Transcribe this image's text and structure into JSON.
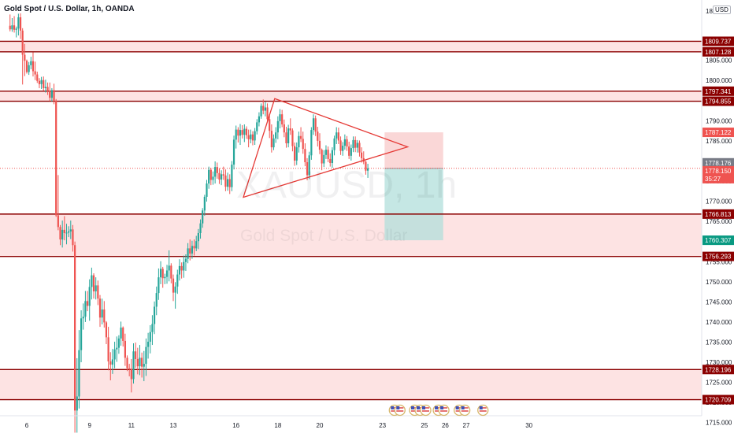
{
  "header": {
    "title": "Gold Spot / U.S. Dollar, 1h, OANDA",
    "currency_label": "USD"
  },
  "watermark": {
    "symbol": "XAUUSD, 1h",
    "name": "Gold Spot / U.S. Dollar"
  },
  "colors": {
    "up": "#26a69a",
    "down": "#ef5350",
    "level_line": "#8b0000",
    "zone_fill": "#fde3e3",
    "triangle": "#e53935",
    "stop_fill": "#f8c9c9",
    "target_fill": "#b2dfdb",
    "price_line": "#ef5350",
    "current_price_label": "#787b86",
    "target_label": "#089981"
  },
  "countdown": "35:27",
  "calendar_events": {
    "icon": "us-flag-event-icon",
    "groups": [
      {
        "x": 23.7,
        "count": 2
      },
      {
        "x": 24.8,
        "count": 3
      },
      {
        "x": 25.8,
        "count": 2
      },
      {
        "x": 26.8,
        "count": 2
      },
      {
        "x": 27.8,
        "count": 1
      }
    ]
  },
  "chart_data": {
    "type": "candlestick",
    "title": "Gold Spot / U.S. Dollar, 1h, OANDA",
    "ylim": [
      1712.5,
      1820
    ],
    "y_ticks": [
      1715,
      1720,
      1725,
      1730,
      1735,
      1740,
      1745,
      1750,
      1755,
      1760,
      1765,
      1770,
      1775,
      1780,
      1785,
      1790,
      1795,
      1800,
      1805,
      1810
    ],
    "top_tick_label": "18",
    "x_ticks": [
      {
        "x": 6,
        "label": "6"
      },
      {
        "x": 9,
        "label": "9"
      },
      {
        "x": 11,
        "label": "11"
      },
      {
        "x": 13,
        "label": "13"
      },
      {
        "x": 16,
        "label": "16"
      },
      {
        "x": 18,
        "label": "18"
      },
      {
        "x": 20,
        "label": "20"
      },
      {
        "x": 23,
        "label": "23"
      },
      {
        "x": 25,
        "label": "25"
      },
      {
        "x": 26,
        "label": "26"
      },
      {
        "x": 27,
        "label": "27"
      },
      {
        "x": 30,
        "label": "30"
      }
    ],
    "price_levels": [
      {
        "label": "1809.737",
        "value": 1809.737
      },
      {
        "label": "1807.128",
        "value": 1807.128
      },
      {
        "label": "1797.341",
        "value": 1797.341
      },
      {
        "label": "1794.855",
        "value": 1794.855
      },
      {
        "label": "1766.813",
        "value": 1766.813
      },
      {
        "label": "1756.293",
        "value": 1756.293
      },
      {
        "label": "1728.196",
        "value": 1728.196
      },
      {
        "label": "1720.709",
        "value": 1720.709
      }
    ],
    "zones": [
      {
        "from": 1807.128,
        "to": 1809.737
      },
      {
        "from": 1794.855,
        "to": 1797.341
      },
      {
        "from": 1756.293,
        "to": 1766.813
      },
      {
        "from": 1720.709,
        "to": 1728.196
      }
    ],
    "current_price": {
      "value": 1778.176,
      "label": "1778.176"
    },
    "position": {
      "entry": 1778.15,
      "entry_label": "1778.150",
      "stop": 1787.122,
      "stop_label": "1787.122",
      "target": 1760.307,
      "target_label": "1760.307",
      "start": 23.1,
      "end": 25.9
    },
    "triangle": [
      {
        "x": 16.35,
        "y": 1771.0
      },
      {
        "x": 17.85,
        "y": 1795.5
      },
      {
        "x": 24.2,
        "y": 1783.5
      }
    ],
    "candles": [
      [
        5.2,
        1813.6,
        1816.4,
        1812.2,
        1812.7
      ],
      [
        5.3,
        1812.7,
        1815.5,
        1812.1,
        1813.7
      ],
      [
        5.4,
        1813.7,
        1816.0,
        1811.9,
        1812.6
      ],
      [
        5.5,
        1812.6,
        1813.4,
        1810.7,
        1812.9
      ],
      [
        5.6,
        1812.9,
        1816.6,
        1811.2,
        1815.7
      ],
      [
        5.7,
        1815.7,
        1816.7,
        1810.3,
        1812.4
      ],
      [
        5.8,
        1812.4,
        1813.0,
        1799.0,
        1806.4
      ],
      [
        5.9,
        1806.4,
        1809.1,
        1801.1,
        1804.9
      ],
      [
        6.0,
        1804.9,
        1805.2,
        1801.7,
        1802.1
      ],
      [
        6.1,
        1802.1,
        1804.6,
        1801.4,
        1803.8
      ],
      [
        6.2,
        1803.8,
        1805.9,
        1802.8,
        1804.8
      ],
      [
        6.3,
        1804.8,
        1807.0,
        1801.0,
        1802.3
      ],
      [
        6.4,
        1802.3,
        1804.7,
        1800.1,
        1801.5
      ],
      [
        6.5,
        1801.5,
        1802.2,
        1799.4,
        1799.9
      ],
      [
        6.6,
        1799.9,
        1800.6,
        1798.1,
        1799.1
      ],
      [
        6.7,
        1799.1,
        1800.9,
        1797.9,
        1800.1
      ],
      [
        6.8,
        1800.1,
        1801.0,
        1797.5,
        1798.1
      ],
      [
        6.9,
        1798.1,
        1800.2,
        1797.0,
        1798.4
      ],
      [
        7.0,
        1798.4,
        1799.5,
        1796.4,
        1797.5
      ],
      [
        7.1,
        1797.5,
        1799.5,
        1794.9,
        1795.7
      ],
      [
        7.2,
        1795.7,
        1798.1,
        1794.8,
        1797.6
      ],
      [
        7.3,
        1797.6,
        1799.2,
        1794.1,
        1795.0
      ],
      [
        7.4,
        1795.0,
        1795.4,
        1766.1,
        1766.5
      ],
      [
        7.5,
        1766.5,
        1776.5,
        1762.8,
        1763.6
      ],
      [
        7.6,
        1763.6,
        1764.1,
        1759.1,
        1760.5
      ],
      [
        7.7,
        1760.5,
        1765.2,
        1758.5,
        1762.9
      ],
      [
        7.8,
        1762.9,
        1766.3,
        1760.3,
        1762.1
      ],
      [
        7.9,
        1762.1,
        1764.4,
        1759.3,
        1762.2
      ],
      [
        8.0,
        1762.2,
        1763.8,
        1761.1,
        1762.5
      ],
      [
        8.1,
        1762.5,
        1765.2,
        1760.6,
        1763.0
      ],
      [
        8.2,
        1763.0,
        1764.1,
        1757.5,
        1759.1
      ],
      [
        8.3,
        1759.1,
        1760.0,
        1712.5,
        1718.0
      ],
      [
        8.4,
        1718.0,
        1731.0,
        1712.5,
        1721.5
      ],
      [
        8.5,
        1721.5,
        1738.0,
        1718.5,
        1733.0
      ],
      [
        8.6,
        1733.0,
        1742.9,
        1730.0,
        1740.9
      ],
      [
        8.7,
        1740.9,
        1744.6,
        1738.1,
        1741.3
      ],
      [
        8.8,
        1741.3,
        1747.7,
        1740.0,
        1745.2
      ],
      [
        8.9,
        1745.2,
        1747.7,
        1742.7,
        1744.0
      ],
      [
        9.0,
        1744.0,
        1750.6,
        1740.3,
        1748.7
      ],
      [
        9.1,
        1748.7,
        1753.5,
        1745.6,
        1751.6
      ],
      [
        9.2,
        1751.6,
        1752.1,
        1745.8,
        1747.6
      ],
      [
        9.3,
        1747.6,
        1751.1,
        1745.6,
        1749.1
      ],
      [
        9.4,
        1749.1,
        1750.3,
        1744.2,
        1745.8
      ],
      [
        9.5,
        1745.8,
        1746.7,
        1738.8,
        1741.1
      ],
      [
        9.6,
        1741.1,
        1745.8,
        1739.4,
        1743.1
      ],
      [
        9.7,
        1743.1,
        1745.2,
        1738.6,
        1739.9
      ],
      [
        9.8,
        1739.9,
        1740.2,
        1734.5,
        1736.2
      ],
      [
        9.9,
        1736.2,
        1738.8,
        1728.0,
        1730.2
      ],
      [
        10.0,
        1730.2,
        1732.5,
        1725.5,
        1729.4
      ],
      [
        10.1,
        1729.4,
        1733.3,
        1727.1,
        1730.7
      ],
      [
        10.2,
        1730.7,
        1735.1,
        1728.5,
        1733.2
      ],
      [
        10.3,
        1733.2,
        1736.4,
        1730.1,
        1733.6
      ],
      [
        10.4,
        1733.6,
        1736.7,
        1732.1,
        1735.9
      ],
      [
        10.5,
        1735.9,
        1740.1,
        1734.1,
        1738.6
      ],
      [
        10.6,
        1738.6,
        1738.9,
        1733.9,
        1735.3
      ],
      [
        10.7,
        1735.3,
        1737.1,
        1729.1,
        1731.1
      ],
      [
        10.8,
        1731.1,
        1731.7,
        1727.8,
        1728.5
      ],
      [
        10.9,
        1728.5,
        1729.6,
        1726.5,
        1728.3
      ],
      [
        11.0,
        1728.3,
        1730.8,
        1722.5,
        1725.8
      ],
      [
        11.1,
        1725.8,
        1734.7,
        1724.7,
        1732.7
      ],
      [
        11.2,
        1732.7,
        1734.9,
        1728.6,
        1730.8
      ],
      [
        11.3,
        1730.8,
        1733.6,
        1727.0,
        1729.0
      ],
      [
        11.4,
        1729.0,
        1734.3,
        1726.8,
        1731.1
      ],
      [
        11.5,
        1731.1,
        1732.4,
        1726.2,
        1728.9
      ],
      [
        11.6,
        1728.9,
        1732.8,
        1725.3,
        1729.6
      ],
      [
        11.7,
        1729.6,
        1735.9,
        1726.6,
        1733.8
      ],
      [
        11.8,
        1733.8,
        1737.3,
        1730.9,
        1735.1
      ],
      [
        11.9,
        1735.1,
        1739.2,
        1732.2,
        1737.5
      ],
      [
        12.0,
        1737.5,
        1741.7,
        1734.3,
        1739.5
      ],
      [
        12.1,
        1739.5,
        1745.1,
        1737.0,
        1743.8
      ],
      [
        12.2,
        1743.8,
        1748.8,
        1741.7,
        1747.2
      ],
      [
        12.3,
        1747.2,
        1753.3,
        1745.5,
        1751.1
      ],
      [
        12.4,
        1751.1,
        1755.1,
        1749.4,
        1753.2
      ],
      [
        12.5,
        1753.2,
        1753.7,
        1748.5,
        1750.9
      ],
      [
        12.6,
        1750.9,
        1752.0,
        1749.4,
        1751.2
      ],
      [
        12.7,
        1751.2,
        1754.2,
        1749.5,
        1752.8
      ],
      [
        12.8,
        1752.8,
        1757.8,
        1750.1,
        1754.0
      ],
      [
        12.9,
        1754.0,
        1754.6,
        1749.6,
        1750.8
      ],
      [
        13.0,
        1750.8,
        1751.8,
        1745.2,
        1747.3
      ],
      [
        13.1,
        1747.3,
        1749.9,
        1743.3,
        1748.8
      ],
      [
        13.2,
        1748.8,
        1753.0,
        1747.0,
        1751.8
      ],
      [
        13.3,
        1751.8,
        1755.6,
        1750.3,
        1753.9
      ],
      [
        13.4,
        1753.9,
        1754.8,
        1750.8,
        1752.8
      ],
      [
        13.5,
        1752.8,
        1756.5,
        1751.0,
        1754.9
      ],
      [
        13.6,
        1754.9,
        1756.8,
        1752.7,
        1755.7
      ],
      [
        13.7,
        1755.7,
        1759.6,
        1754.6,
        1758.3
      ],
      [
        13.8,
        1758.3,
        1760.5,
        1755.3,
        1757.0
      ],
      [
        13.9,
        1757.0,
        1760.2,
        1755.7,
        1758.9
      ],
      [
        14.0,
        1758.9,
        1760.5,
        1756.5,
        1758.3
      ],
      [
        14.1,
        1758.3,
        1761.4,
        1757.6,
        1760.1
      ],
      [
        14.2,
        1760.1,
        1763.1,
        1758.1,
        1762.1
      ],
      [
        14.3,
        1762.1,
        1765.5,
        1760.7,
        1764.5
      ],
      [
        14.4,
        1764.5,
        1768.3,
        1763.4,
        1767.7
      ],
      [
        14.5,
        1767.7,
        1771.6,
        1766.4,
        1771.1
      ],
      [
        14.6,
        1771.1,
        1775.3,
        1769.9,
        1774.4
      ],
      [
        14.7,
        1774.4,
        1778.6,
        1773.1,
        1777.8
      ],
      [
        14.8,
        1777.8,
        1778.3,
        1774.0,
        1775.3
      ],
      [
        14.9,
        1775.3,
        1777.4,
        1774.1,
        1776.1
      ],
      [
        15.0,
        1776.1,
        1779.9,
        1774.4,
        1778.5
      ],
      [
        15.1,
        1778.5,
        1779.6,
        1775.6,
        1777.0
      ],
      [
        15.2,
        1777.0,
        1778.2,
        1774.3,
        1775.4
      ],
      [
        15.3,
        1775.4,
        1777.7,
        1774.0,
        1776.7
      ],
      [
        15.4,
        1776.7,
        1778.6,
        1775.3,
        1776.4
      ],
      [
        15.5,
        1776.4,
        1777.9,
        1772.5,
        1773.6
      ],
      [
        15.6,
        1773.6,
        1777.1,
        1772.6,
        1775.5
      ],
      [
        15.7,
        1775.5,
        1776.7,
        1771.8,
        1773.5
      ],
      [
        15.8,
        1773.5,
        1780.0,
        1772.5,
        1779.1
      ],
      [
        15.9,
        1779.1,
        1786.3,
        1777.9,
        1785.3
      ],
      [
        16.0,
        1785.3,
        1788.8,
        1783.1,
        1787.8
      ],
      [
        16.1,
        1787.8,
        1788.4,
        1784.6,
        1786.3
      ],
      [
        16.2,
        1786.3,
        1789.2,
        1784.0,
        1787.7
      ],
      [
        16.3,
        1787.7,
        1788.9,
        1785.6,
        1786.5
      ],
      [
        16.4,
        1786.5,
        1789.1,
        1784.7,
        1788.0
      ],
      [
        16.5,
        1788.0,
        1788.6,
        1785.5,
        1786.4
      ],
      [
        16.6,
        1786.4,
        1787.8,
        1783.4,
        1785.4
      ],
      [
        16.7,
        1785.4,
        1787.8,
        1784.4,
        1786.6
      ],
      [
        16.8,
        1786.6,
        1787.4,
        1783.9,
        1785.1
      ],
      [
        16.9,
        1785.1,
        1788.2,
        1784.0,
        1787.4
      ],
      [
        17.0,
        1787.4,
        1790.4,
        1786.6,
        1789.6
      ],
      [
        17.1,
        1789.6,
        1792.1,
        1788.6,
        1791.1
      ],
      [
        17.2,
        1791.1,
        1794.3,
        1790.5,
        1793.7
      ],
      [
        17.3,
        1793.7,
        1795.3,
        1791.6,
        1792.5
      ],
      [
        17.4,
        1792.5,
        1794.7,
        1791.1,
        1793.3
      ],
      [
        17.5,
        1793.3,
        1794.3,
        1789.6,
        1790.4
      ],
      [
        17.6,
        1790.4,
        1791.6,
        1785.7,
        1787.5
      ],
      [
        17.7,
        1787.5,
        1789.1,
        1782.1,
        1783.4
      ],
      [
        17.8,
        1783.4,
        1786.6,
        1782.7,
        1785.6
      ],
      [
        17.9,
        1785.6,
        1788.4,
        1784.5,
        1787.1
      ],
      [
        18.0,
        1787.1,
        1791.1,
        1785.4,
        1789.9
      ],
      [
        18.1,
        1789.9,
        1792.9,
        1788.1,
        1791.6
      ],
      [
        18.2,
        1791.6,
        1792.7,
        1788.4,
        1789.1
      ],
      [
        18.3,
        1789.1,
        1790.3,
        1785.9,
        1787.1
      ],
      [
        18.4,
        1787.1,
        1788.5,
        1783.3,
        1784.4
      ],
      [
        18.5,
        1784.4,
        1789.0,
        1783.4,
        1788.1
      ],
      [
        18.6,
        1788.1,
        1790.6,
        1786.5,
        1787.6
      ],
      [
        18.7,
        1787.6,
        1788.1,
        1782.4,
        1783.7
      ],
      [
        18.8,
        1783.7,
        1784.6,
        1778.8,
        1780.1
      ],
      [
        18.9,
        1780.1,
        1784.6,
        1779.0,
        1783.4
      ],
      [
        19.0,
        1783.4,
        1787.3,
        1782.1,
        1786.2
      ],
      [
        19.1,
        1786.2,
        1788.4,
        1784.7,
        1785.5
      ],
      [
        19.2,
        1785.5,
        1787.3,
        1781.8,
        1783.0
      ],
      [
        19.3,
        1783.0,
        1784.4,
        1778.7,
        1779.7
      ],
      [
        19.4,
        1779.7,
        1780.7,
        1775.2,
        1776.5
      ],
      [
        19.5,
        1776.5,
        1782.3,
        1775.5,
        1781.4
      ],
      [
        19.6,
        1781.4,
        1788.4,
        1780.3,
        1787.7
      ],
      [
        19.7,
        1787.7,
        1791.6,
        1786.5,
        1790.6
      ],
      [
        19.8,
        1790.6,
        1791.3,
        1786.2,
        1787.3
      ],
      [
        19.9,
        1787.3,
        1788.5,
        1783.6,
        1785.0
      ],
      [
        20.0,
        1785.0,
        1786.9,
        1781.7,
        1782.8
      ],
      [
        20.1,
        1782.8,
        1783.1,
        1777.7,
        1779.4
      ],
      [
        20.2,
        1779.4,
        1782.7,
        1778.5,
        1781.5
      ],
      [
        20.3,
        1781.5,
        1783.9,
        1780.5,
        1782.8
      ],
      [
        20.4,
        1782.8,
        1783.6,
        1779.7,
        1780.5
      ],
      [
        20.5,
        1780.5,
        1781.9,
        1778.6,
        1779.5
      ],
      [
        20.6,
        1779.5,
        1783.4,
        1778.3,
        1782.7
      ],
      [
        20.7,
        1782.7,
        1786.3,
        1781.4,
        1785.6
      ],
      [
        20.8,
        1785.6,
        1788.4,
        1784.2,
        1787.1
      ],
      [
        20.9,
        1787.1,
        1788.3,
        1784.2,
        1785.1
      ],
      [
        21.0,
        1785.1,
        1786.1,
        1781.5,
        1782.5
      ],
      [
        21.1,
        1782.5,
        1784.7,
        1781.3,
        1783.8
      ],
      [
        21.2,
        1783.8,
        1786.6,
        1782.8,
        1785.4
      ],
      [
        21.3,
        1785.4,
        1786.2,
        1782.5,
        1783.6
      ],
      [
        21.4,
        1783.6,
        1784.8,
        1780.5,
        1781.3
      ],
      [
        21.5,
        1781.3,
        1784.1,
        1780.1,
        1783.2
      ],
      [
        21.6,
        1783.2,
        1786.1,
        1782.2,
        1785.2
      ],
      [
        21.7,
        1785.2,
        1786.1,
        1782.2,
        1783.3
      ],
      [
        21.8,
        1783.3,
        1785.2,
        1782.1,
        1784.5
      ],
      [
        21.9,
        1784.5,
        1785.1,
        1781.1,
        1782.1
      ],
      [
        22.0,
        1782.1,
        1783.4,
        1779.6,
        1780.7
      ],
      [
        22.1,
        1780.7,
        1782.4,
        1779.2,
        1779.8
      ],
      [
        22.2,
        1779.8,
        1780.1,
        1776.6,
        1777.6
      ],
      [
        22.3,
        1777.6,
        1779.3,
        1775.8,
        1778.176
      ]
    ]
  }
}
